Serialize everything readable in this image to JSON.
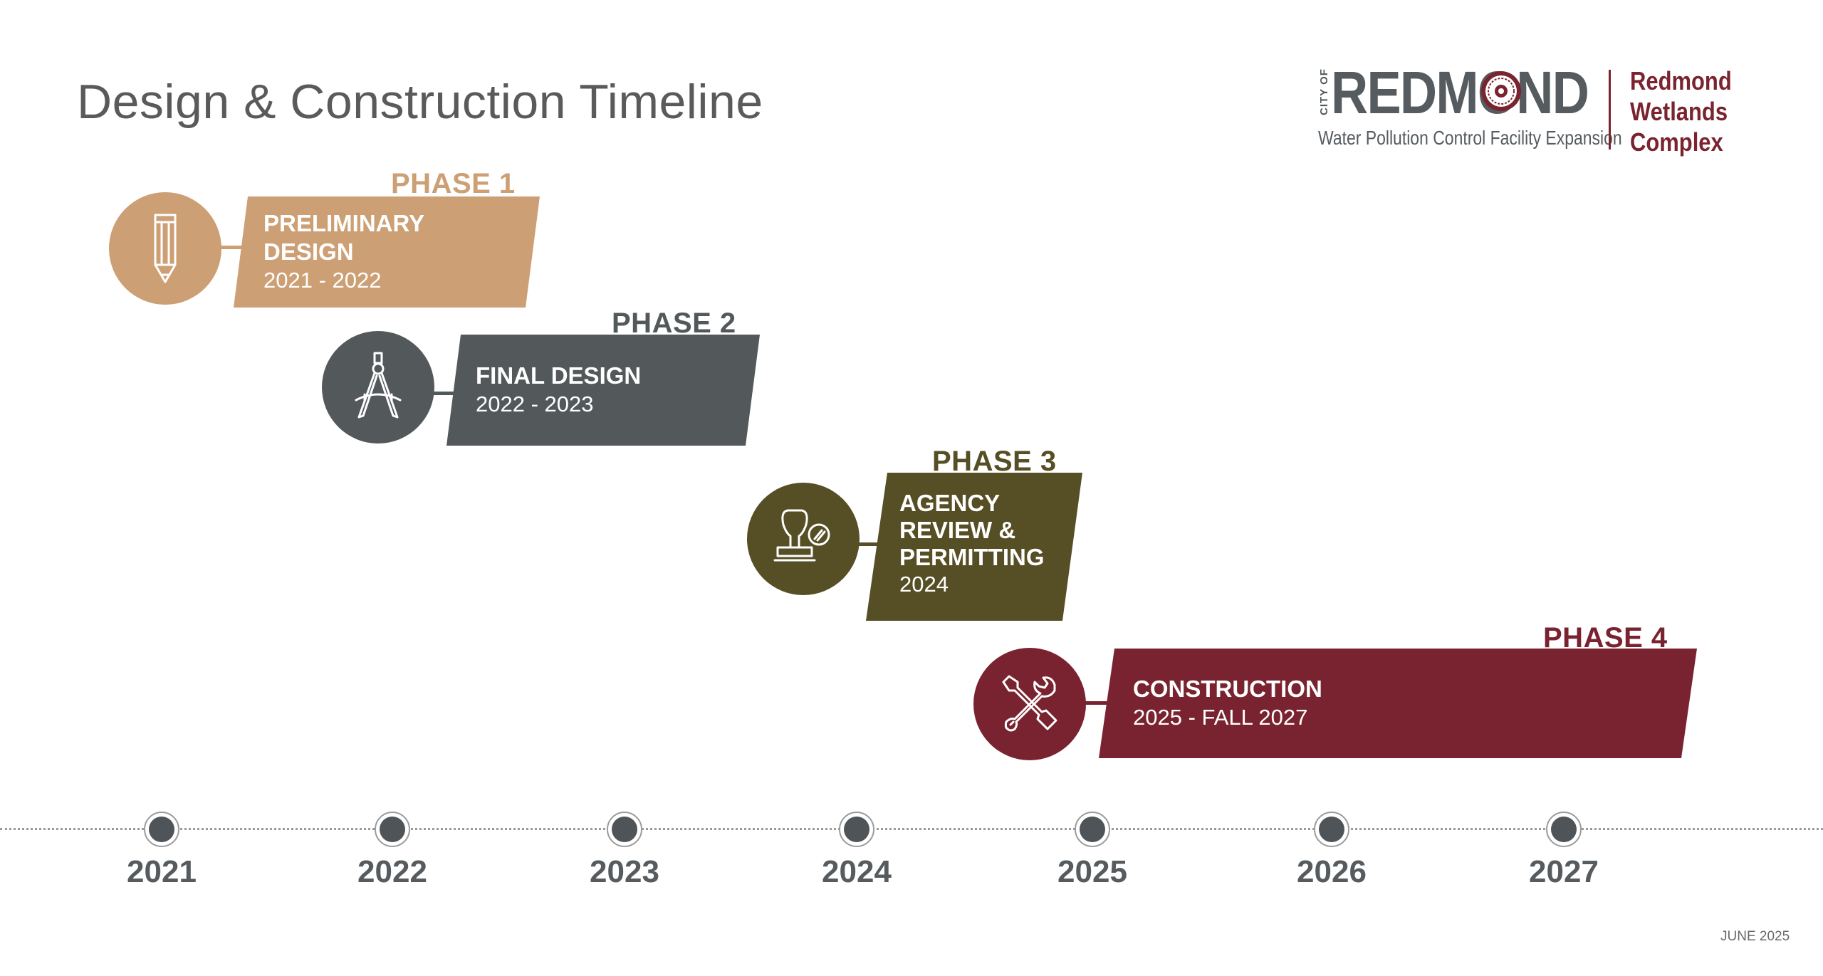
{
  "title": "Design & Construction Timeline",
  "logo": {
    "city_of": "CITY OF",
    "name": "REDMOND",
    "subtitle": "Water Pollution Control Facility Expansion",
    "wetlands_line1": "Redmond",
    "wetlands_line2": "Wetlands",
    "wetlands_line3": "Complex"
  },
  "colors": {
    "phase1": "#cc9f74",
    "phase2": "#53585b",
    "phase3": "#564e24",
    "phase4": "#7a2330",
    "axis_dot": "#4f5458",
    "text_gray": "#555b5e"
  },
  "phases": [
    {
      "phase": "PHASE 1",
      "name_line1": "PRELIMINARY",
      "name_line2": "DESIGN",
      "dates": "2021 - 2022",
      "icon": "pencil-icon"
    },
    {
      "phase": "PHASE 2",
      "name_line1": "FINAL DESIGN",
      "dates": "2022 - 2023",
      "icon": "drafting-compass-icon"
    },
    {
      "phase": "PHASE 3",
      "name_line1": "AGENCY",
      "name_line2": "REVIEW &",
      "name_line3": "PERMITTING",
      "dates": "2024",
      "icon": "stamp-icon"
    },
    {
      "phase": "PHASE 4",
      "name_line1": "CONSTRUCTION",
      "dates": "2025 - FALL 2027",
      "icon": "tools-icon"
    }
  ],
  "years": [
    "2021",
    "2022",
    "2023",
    "2024",
    "2025",
    "2026",
    "2027"
  ],
  "footer": "JUNE 2025"
}
